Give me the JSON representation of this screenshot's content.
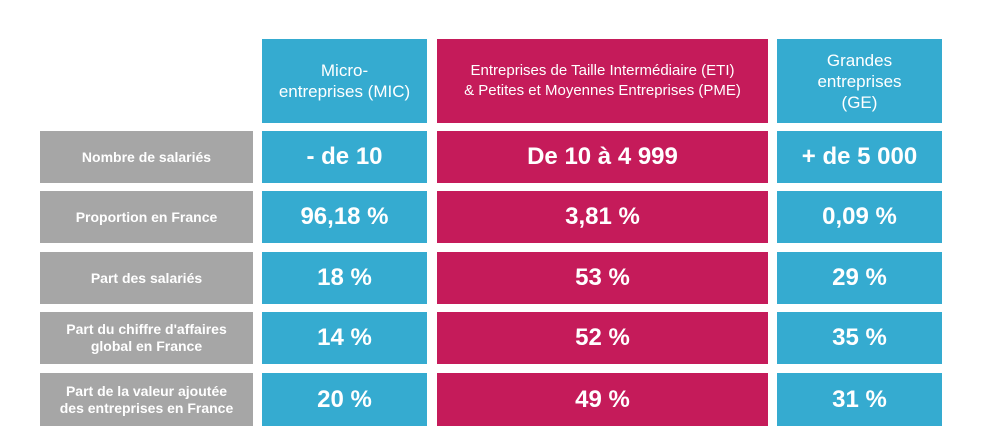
{
  "headers": {
    "mic": "Micro-\nentreprises (MIC)",
    "eti_pme": "Entreprises de Taille Intermédiaire (ETI)\n& Petites et Moyennes Entreprises (PME)",
    "ge": "Grandes\nentreprises\n(GE)"
  },
  "rows": [
    {
      "label": "Nombre de salariés",
      "mic": "- de 10",
      "eti_pme": "De 10 à 4 999",
      "ge": "+ de 5 000"
    },
    {
      "label": "Proportion en France",
      "mic": "96,18 %",
      "eti_pme": "3,81 %",
      "ge": "0,09 %"
    },
    {
      "label": "Part des salariés",
      "mic": "18 %",
      "eti_pme": "53 %",
      "ge": "29 %"
    },
    {
      "label": "Part du chiffre d'affaires\nglobal en France",
      "mic": "14 %",
      "eti_pme": "52 %",
      "ge": "35 %"
    },
    {
      "label": "Part de la valeur ajoutée\ndes entreprises en France",
      "mic": "20 %",
      "eti_pme": "49 %",
      "ge": "31 %"
    }
  ],
  "colors": {
    "blue": "#35abd0",
    "pink": "#c51b5a",
    "grey": "#a6a6a6"
  }
}
